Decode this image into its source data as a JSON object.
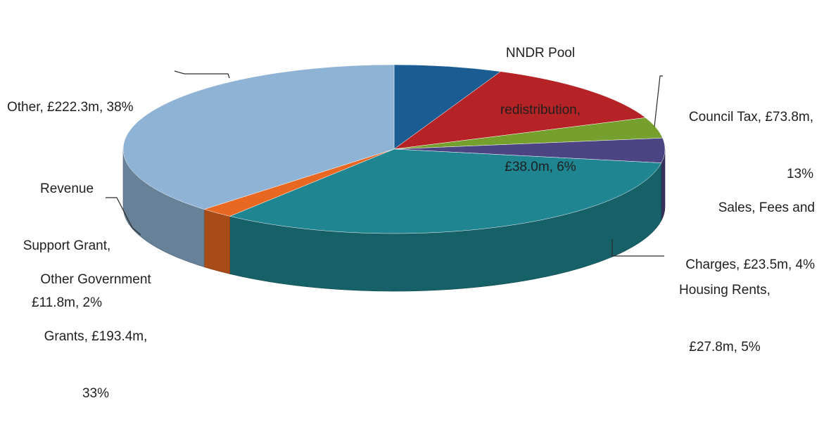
{
  "chart_data": {
    "type": "pie",
    "title": "",
    "series": [
      {
        "name": "",
        "slices": [
          {
            "label_lines": [
              "NNDR Pool",
              "redistribution,",
              "£38.0m, 6%"
            ],
            "category": "NNDR Pool redistribution",
            "value": 38.0,
            "percent": 6,
            "color": "#1b5d93"
          },
          {
            "label_lines": [
              "Council Tax, £73.8m,",
              "13%"
            ],
            "category": "Council Tax",
            "value": 73.8,
            "percent": 13,
            "color": "#b52326"
          },
          {
            "label_lines": [
              "Sales, Fees and",
              "Charges, £23.5m, 4%"
            ],
            "category": "Sales, Fees and Charges",
            "value": 23.5,
            "percent": 4,
            "color": "#76a02e"
          },
          {
            "label_lines": [
              "Housing Rents,",
              "£27.8m, 5%"
            ],
            "category": "Housing Rents",
            "value": 27.8,
            "percent": 5,
            "color": "#4c4483"
          },
          {
            "label_lines": [
              "Other Government",
              "Grants, £193.4m,",
              "33%"
            ],
            "category": "Other Government Grants",
            "value": 193.4,
            "percent": 33,
            "color": "#1f8591"
          },
          {
            "label_lines": [
              "Revenue",
              "Support Grant,",
              "£11.8m, 2%"
            ],
            "category": "Revenue Support Grant",
            "value": 11.8,
            "percent": 2,
            "color": "#e86822"
          },
          {
            "label_lines": [
              "Other, £222.3m, 38%"
            ],
            "category": "Other",
            "value": 222.3,
            "percent": 38,
            "color": "#8fb3d4"
          }
        ]
      }
    ],
    "start_direction": "top, clockwise",
    "style": "3d-pie",
    "legend": "none, data labels with leader lines"
  }
}
